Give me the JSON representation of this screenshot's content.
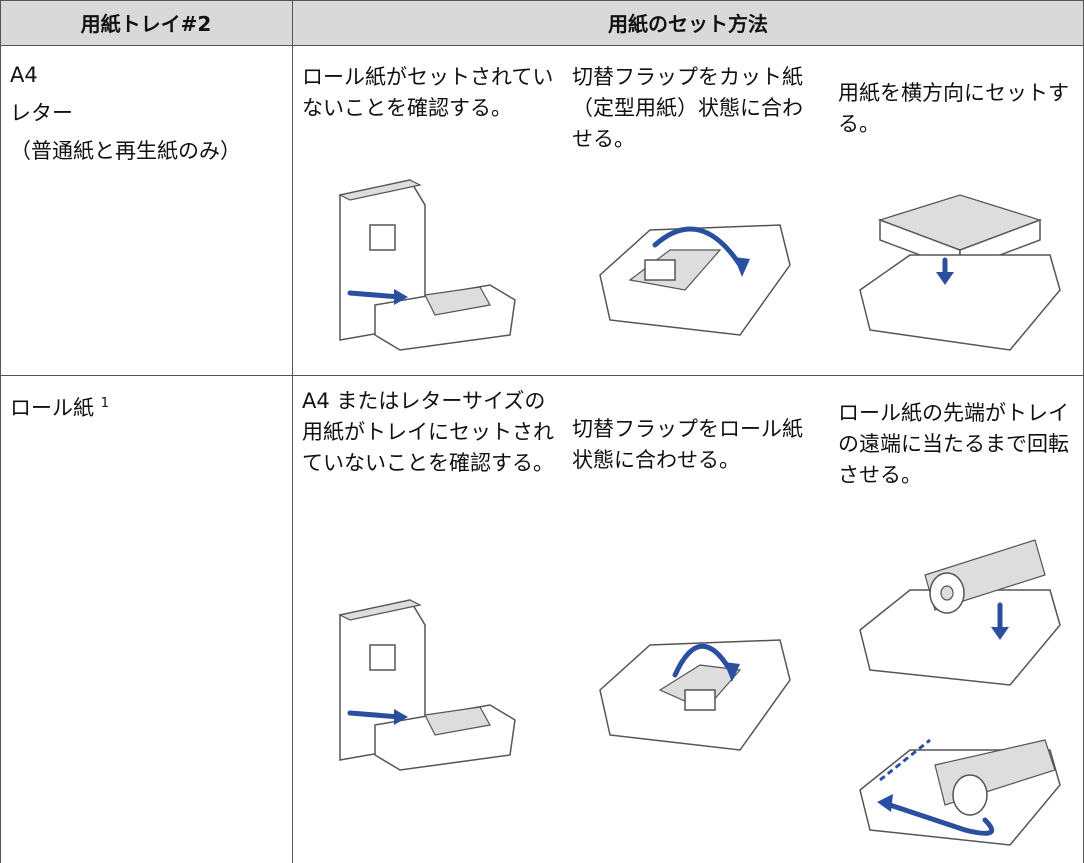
{
  "table": {
    "header": [
      "用紙トレイ#2",
      "用紙のセット方法"
    ],
    "rows": [
      {
        "tray": [
          "A4",
          "レター",
          "（普通紙と再生紙のみ）"
        ],
        "steps": [
          "ロール紙がセットされていないことを確認する。",
          "切替フラップをカット紙（定型用紙）状態に合わせる。",
          "用紙を横方向にセットする。"
        ]
      },
      {
        "tray": [
          "ロール紙"
        ],
        "footnote": "1",
        "steps": [
          "A4 またはレターサイズの用紙がトレイにセットされていないことを確認する。",
          "切替フラップをロール紙状態に合わせる。",
          "ロール紙の先端がトレイの遠端に当たるまで回転させる。"
        ]
      }
    ]
  }
}
